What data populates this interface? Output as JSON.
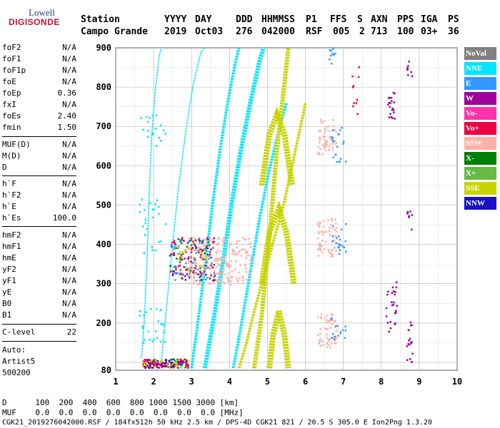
{
  "logo": {
    "top": "Lowell",
    "main": "DIGISONDE"
  },
  "header": {
    "labels": [
      "Station",
      "YYYY",
      "DAY",
      "DDD",
      "HHMMSS",
      "P1",
      "FFS",
      "S",
      "AXN",
      "PPS",
      "IGA",
      "PS"
    ],
    "values": [
      "Campo Grande",
      "2019",
      "Oct03",
      "276",
      "042000",
      "RSF",
      "005",
      "2",
      "713",
      "100",
      "03+",
      "36"
    ]
  },
  "params": [
    {
      "name": "foF2",
      "value": "N/A"
    },
    {
      "name": "foF1",
      "value": "N/A"
    },
    {
      "name": "foF1p",
      "value": "N/A"
    },
    {
      "name": "foE",
      "value": "N/A"
    },
    {
      "name": "foEp",
      "value": "0.36"
    },
    {
      "name": "fxI",
      "value": "N/A"
    },
    {
      "name": "foEs",
      "value": "2.40"
    },
    {
      "name": "fmin",
      "value": "1.50"
    },
    {
      "name": "MUF(D)",
      "value": "N/A"
    },
    {
      "name": "M(D)",
      "value": "N/A"
    },
    {
      "name": "D",
      "value": "N/A"
    },
    {
      "name": "h`F",
      "value": "N/A"
    },
    {
      "name": "h`F2",
      "value": "N/A"
    },
    {
      "name": "h`E",
      "value": "N/A"
    },
    {
      "name": "h`Es",
      "value": "100.0"
    },
    {
      "name": "hmF2",
      "value": "N/A"
    },
    {
      "name": "hmF1",
      "value": "N/A"
    },
    {
      "name": "hmE",
      "value": "N/A"
    },
    {
      "name": "yF2",
      "value": "N/A"
    },
    {
      "name": "yF1",
      "value": "N/A"
    },
    {
      "name": "yE",
      "value": "N/A"
    },
    {
      "name": "B0",
      "value": "N/A"
    },
    {
      "name": "B1",
      "value": "N/A"
    },
    {
      "name": "C-level",
      "value": "22"
    }
  ],
  "auto": [
    "Auto:",
    "Artist5",
    "500200"
  ],
  "legend": [
    {
      "label": "NoVal",
      "color": "#808080"
    },
    {
      "label": "NNE",
      "color": "#00e5ff"
    },
    {
      "label": "E",
      "color": "#3399ff"
    },
    {
      "label": "W",
      "color": "#a0009a"
    },
    {
      "label": "Vo-",
      "color": "#ff33aa"
    },
    {
      "label": "Vo+",
      "color": "#ee0044"
    },
    {
      "label": "SSW",
      "color": "#ffb0a8"
    },
    {
      "label": "X-",
      "color": "#008000"
    },
    {
      "label": "X+",
      "color": "#66bb44"
    },
    {
      "label": "SSE",
      "color": "#c8d400"
    },
    {
      "label": "NNW",
      "color": "#1a10c8"
    }
  ],
  "footer": {
    "d_row": "D      100  200  400  600  800 1000 1500 3000 [km]",
    "muf_row": "MUF    0.0  0.0  0.0  0.0  0.0  0.0  0.0  0.0 [MHz]",
    "info": "CGK21_2019276042000.RSF / 184fx512h 50 kHz 2.5 km / DPS-4D CGK21 821 / 20.5 S 305.0 E Ion2Png 1.3.20"
  },
  "chart_data": {
    "type": "scatter",
    "xlim": [
      1,
      10
    ],
    "ylim": [
      80,
      900
    ],
    "x_ticks": [
      1,
      2,
      3,
      4,
      5,
      6,
      7,
      8,
      9,
      10
    ],
    "y_ticks": [
      80,
      100,
      200,
      300,
      400,
      500,
      600,
      700,
      800,
      900
    ],
    "y_tick_labels": [
      {
        "value": 80,
        "label": "80"
      },
      {
        "value": 200,
        "label": "200"
      },
      {
        "value": 300,
        "label": "300"
      },
      {
        "value": 400,
        "label": "400"
      },
      {
        "value": 500,
        "label": "500"
      },
      {
        "value": 600,
        "label": "600"
      },
      {
        "value": 700,
        "label": "700"
      },
      {
        "value": 800,
        "label": "800"
      },
      {
        "value": 900,
        "label": "900"
      }
    ],
    "grid": true,
    "traces": [
      {
        "name": "NNE",
        "color": "#00e5ff",
        "width": 1.5,
        "points": [
          [
            1.68,
            110
          ],
          [
            1.75,
            200
          ],
          [
            1.82,
            350
          ],
          [
            1.88,
            520
          ],
          [
            1.95,
            680
          ],
          [
            2.05,
            800
          ],
          [
            2.15,
            880
          ],
          [
            2.2,
            900
          ]
        ]
      },
      {
        "name": "NNE",
        "color": "#00e5ff",
        "width": 1.5,
        "points": [
          [
            2.2,
            100
          ],
          [
            2.35,
            250
          ],
          [
            2.5,
            400
          ],
          [
            2.65,
            540
          ],
          [
            2.85,
            690
          ],
          [
            3.05,
            810
          ],
          [
            3.25,
            890
          ],
          [
            3.35,
            900
          ]
        ]
      },
      {
        "name": "NNE",
        "color": "#00e5ff",
        "width": 4,
        "points": [
          [
            3.0,
            85
          ],
          [
            3.15,
            190
          ],
          [
            3.35,
            340
          ],
          [
            3.55,
            500
          ],
          [
            3.75,
            640
          ],
          [
            3.95,
            760
          ],
          [
            4.15,
            860
          ],
          [
            4.25,
            900
          ]
        ]
      },
      {
        "name": "NNE",
        "color": "#00e5ff",
        "width": 6,
        "points": [
          [
            3.35,
            85
          ],
          [
            3.6,
            220
          ],
          [
            3.85,
            370
          ],
          [
            4.05,
            500
          ],
          [
            4.3,
            640
          ],
          [
            4.55,
            760
          ],
          [
            4.8,
            870
          ],
          [
            4.9,
            900
          ]
        ]
      },
      {
        "name": "NNE",
        "color": "#00e5ff",
        "width": 4,
        "points": [
          [
            4.1,
            85
          ],
          [
            4.3,
            190
          ],
          [
            4.55,
            330
          ],
          [
            4.8,
            470
          ],
          [
            5.05,
            590
          ],
          [
            5.3,
            690
          ],
          [
            5.5,
            760
          ]
        ]
      },
      {
        "name": "SSE",
        "color": "#c8d400",
        "width": 4,
        "points": [
          [
            4.25,
            85
          ],
          [
            4.45,
            150
          ],
          [
            4.65,
            230
          ],
          [
            4.85,
            300
          ],
          [
            5.05,
            370
          ],
          [
            5.25,
            440
          ],
          [
            5.45,
            510
          ],
          [
            5.65,
            600
          ],
          [
            5.85,
            690
          ],
          [
            6.0,
            760
          ]
        ]
      },
      {
        "name": "SSE",
        "color": "#c8d400",
        "width": 6,
        "points": [
          [
            4.65,
            85
          ],
          [
            4.85,
            220
          ],
          [
            5.05,
            420
          ],
          [
            5.25,
            640
          ],
          [
            5.45,
            810
          ],
          [
            5.55,
            900
          ]
        ]
      },
      {
        "name": "SSE",
        "color": "#c8d400",
        "width": 8,
        "points": [
          [
            5.05,
            85
          ],
          [
            5.15,
            170
          ],
          [
            5.3,
            230
          ],
          [
            5.45,
            170
          ],
          [
            5.55,
            85
          ]
        ]
      },
      {
        "name": "SSE",
        "color": "#c8d400",
        "width": 8,
        "points": [
          [
            4.85,
            300
          ],
          [
            5.05,
            430
          ],
          [
            5.3,
            490
          ],
          [
            5.5,
            430
          ],
          [
            5.7,
            300
          ]
        ]
      },
      {
        "name": "SSE",
        "color": "#c8d400",
        "width": 8,
        "points": [
          [
            4.85,
            550
          ],
          [
            5.05,
            680
          ],
          [
            5.25,
            730
          ],
          [
            5.45,
            680
          ],
          [
            5.65,
            550
          ]
        ]
      }
    ],
    "scatter_groups": [
      {
        "name": "SSW",
        "color": "#ffb0a8",
        "x": [
          2.9,
          4.6
        ],
        "y": [
          300,
          420
        ],
        "n": 240
      },
      {
        "name": "W",
        "color": "#a0009a",
        "x": [
          2.4,
          3.6
        ],
        "y": [
          310,
          420
        ],
        "n": 60
      },
      {
        "name": "E",
        "color": "#3399ff",
        "x": [
          2.4,
          3.6
        ],
        "y": [
          310,
          420
        ],
        "n": 60
      },
      {
        "name": "Vo+",
        "color": "#ee0044",
        "x": [
          2.4,
          3.6
        ],
        "y": [
          310,
          420
        ],
        "n": 40
      },
      {
        "name": "X-",
        "color": "#008000",
        "x": [
          2.4,
          3.6
        ],
        "y": [
          310,
          420
        ],
        "n": 30
      },
      {
        "name": "SSE",
        "color": "#c8d400",
        "x": [
          2.6,
          3.4
        ],
        "y": [
          330,
          400
        ],
        "n": 30
      },
      {
        "name": "SSW",
        "color": "#ffb0a8",
        "x": [
          6.3,
          6.8
        ],
        "y": [
          140,
          230
        ],
        "n": 60
      },
      {
        "name": "SSW",
        "color": "#ffb0a8",
        "x": [
          6.3,
          6.8
        ],
        "y": [
          370,
          470
        ],
        "n": 60
      },
      {
        "name": "SSW",
        "color": "#ffb0a8",
        "x": [
          6.3,
          6.8
        ],
        "y": [
          630,
          720
        ],
        "n": 60
      },
      {
        "name": "E",
        "color": "#3399ff",
        "x": [
          6.65,
          7.05
        ],
        "y": [
          370,
          460
        ],
        "n": 20
      },
      {
        "name": "E",
        "color": "#3399ff",
        "x": [
          6.65,
          7.05
        ],
        "y": [
          610,
          700
        ],
        "n": 20
      },
      {
        "name": "E",
        "color": "#3399ff",
        "x": [
          6.65,
          7.05
        ],
        "y": [
          160,
          230
        ],
        "n": 15
      },
      {
        "name": "W",
        "color": "#a0009a",
        "x": [
          8.1,
          8.4
        ],
        "y": [
          180,
          310
        ],
        "n": 25
      },
      {
        "name": "W",
        "color": "#a0009a",
        "x": [
          8.15,
          8.35
        ],
        "y": [
          720,
          790
        ],
        "n": 20
      },
      {
        "name": "W",
        "color": "#a0009a",
        "x": [
          8.65,
          8.8
        ],
        "y": [
          100,
          210
        ],
        "n": 18
      },
      {
        "name": "W",
        "color": "#a0009a",
        "x": [
          8.65,
          8.8
        ],
        "y": [
          420,
          490
        ],
        "n": 8
      },
      {
        "name": "W",
        "color": "#a0009a",
        "x": [
          8.65,
          8.8
        ],
        "y": [
          830,
          870
        ],
        "n": 8
      },
      {
        "name": "X-",
        "color": "#008000",
        "x": [
          1.7,
          2.9
        ],
        "y": [
          88,
          110
        ],
        "n": 40
      },
      {
        "name": "NNW",
        "color": "#1a10c8",
        "x": [
          1.7,
          2.9
        ],
        "y": [
          88,
          110
        ],
        "n": 40
      },
      {
        "name": "Vo+",
        "color": "#ee0044",
        "x": [
          1.7,
          2.9
        ],
        "y": [
          88,
          110
        ],
        "n": 40
      },
      {
        "name": "SSE",
        "color": "#c8d400",
        "x": [
          1.7,
          2.9
        ],
        "y": [
          88,
          110
        ],
        "n": 30
      },
      {
        "name": "W",
        "color": "#a0009a",
        "x": [
          1.7,
          2.9
        ],
        "y": [
          88,
          110
        ],
        "n": 30
      },
      {
        "name": "NNE",
        "color": "#00e5ff",
        "x": [
          1.6,
          2.3
        ],
        "y": [
          150,
          240
        ],
        "n": 25
      },
      {
        "name": "NNE",
        "color": "#00e5ff",
        "x": [
          1.6,
          2.3
        ],
        "y": [
          380,
          520
        ],
        "n": 25
      },
      {
        "name": "NNE",
        "color": "#00e5ff",
        "x": [
          1.6,
          2.3
        ],
        "y": [
          650,
          730
        ],
        "n": 18
      },
      {
        "name": "Vo+",
        "color": "#ee0044",
        "x": [
          7.2,
          7.4
        ],
        "y": [
          680,
          890
        ],
        "n": 10
      },
      {
        "name": "E",
        "color": "#3399ff",
        "x": [
          6.6,
          6.8
        ],
        "y": [
          860,
          900
        ],
        "n": 10
      }
    ]
  }
}
